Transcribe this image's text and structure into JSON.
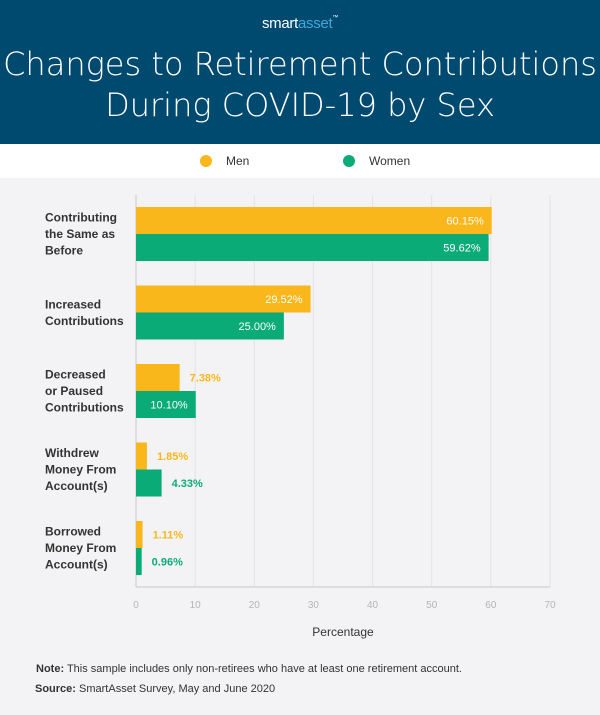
{
  "brand": {
    "part1": "smart",
    "part2": "asset",
    "tm": "™"
  },
  "title_line1": "Changes to Retirement Contributions",
  "title_line2": "During COVID-19 by Sex",
  "colors": {
    "men": "#f9b71c",
    "women": "#0aab77",
    "header": "#004a70"
  },
  "chart_data": {
    "type": "bar",
    "orientation": "horizontal",
    "title": "Changes to Retirement Contributions During COVID-19 by Sex",
    "categories": [
      [
        "Contributing",
        "the Same as",
        "Before"
      ],
      [
        "Increased",
        "Contributions"
      ],
      [
        "Decreased",
        "or Paused",
        "Contributions"
      ],
      [
        "Withdrew",
        "Money From",
        "Account(s)"
      ],
      [
        "Borrowed",
        "Money From",
        "Account(s)"
      ]
    ],
    "series": [
      {
        "name": "Men",
        "values": [
          60.15,
          29.52,
          7.38,
          1.85,
          1.11
        ],
        "labels": [
          "60.15%",
          "29.52%",
          "7.38%",
          "1.85%",
          "1.11%"
        ]
      },
      {
        "name": "Women",
        "values": [
          59.62,
          25.0,
          10.1,
          4.33,
          0.96
        ],
        "labels": [
          "59.62%",
          "25.00%",
          "10.10%",
          "4.33%",
          "0.96%"
        ]
      }
    ],
    "xlabel": "Percentage",
    "ylabel": "",
    "xlim": [
      0,
      70
    ],
    "xticks": [
      0,
      10,
      20,
      30,
      40,
      50,
      60,
      70
    ],
    "grid": true,
    "legend": "top-center"
  },
  "footer": {
    "note_label": "Note:",
    "note_text": " This sample includes only non-retirees who have at least one retirement account.",
    "source_label": "Source:",
    "source_text": " SmartAsset Survey, May and June 2020"
  }
}
